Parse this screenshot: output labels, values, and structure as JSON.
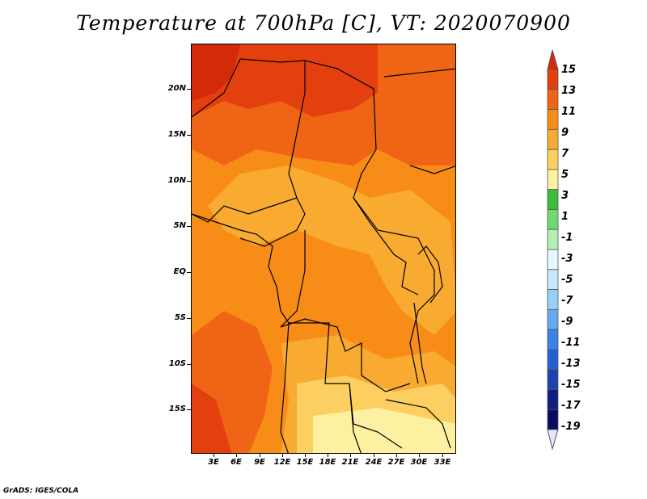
{
  "title": "Temperature at 700hPa [C], VT: 2020070900",
  "footer": "GrADS: IGES/COLA",
  "map": {
    "variable": "Temperature at 700hPa",
    "unit": "C",
    "valid_time": "2020070900"
  },
  "y_axis": {
    "labels": [
      "20N",
      "15N",
      "10N",
      "5N",
      "EQ",
      "5S",
      "10S",
      "15S"
    ],
    "values": [
      20,
      15,
      10,
      5,
      0,
      -5,
      -10,
      -15
    ]
  },
  "x_axis": {
    "labels": [
      "3E",
      "6E",
      "9E",
      "12E",
      "15E",
      "18E",
      "21E",
      "24E",
      "27E",
      "30E",
      "33E"
    ],
    "values": [
      3,
      6,
      9,
      12,
      15,
      18,
      21,
      24,
      27,
      30,
      33
    ]
  },
  "legend": {
    "labels": [
      "15",
      "13",
      "11",
      "9",
      "7",
      "5",
      "3",
      "1",
      "-1",
      "-3",
      "-5",
      "-7",
      "-9",
      "-11",
      "-13",
      "-15",
      "-17",
      "-19"
    ],
    "colors": [
      "#d42a0a",
      "#e4400f",
      "#f06415",
      "#f78c16",
      "#f8ab30",
      "#fccf60",
      "#fdf0a0",
      "#3dbb3d",
      "#70d870",
      "#b4f0b4",
      "#e6f8ff",
      "#c6e8fb",
      "#96d0f5",
      "#63aaf0",
      "#3c82e6",
      "#2460d2",
      "#1a42b0",
      "#0e1e80",
      "#0a0a64",
      "#e6e6f8"
    ]
  }
}
